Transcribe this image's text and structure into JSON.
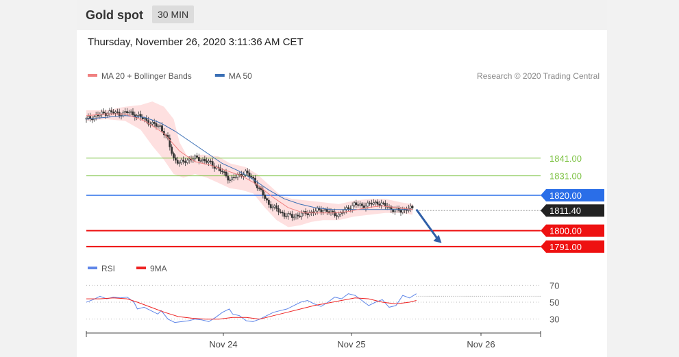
{
  "header": {
    "instrument": "Gold spot",
    "timeframe": "30 MIN"
  },
  "timestamp": "Thursday, November 26, 2020 3:11:36 AM CET",
  "credit": "Research © 2020 Trading Central",
  "colors": {
    "ma20": "#f08080",
    "ma50": "#3a6fb5",
    "bollinger": "#fdd6d6",
    "resistance": "#7cc242",
    "pivot": "#2a6ee8",
    "support": "#ee1111",
    "rsi": "#5f86e8",
    "rsi_ma": "#ee2222",
    "last_price": "#222222"
  },
  "chart_data": [
    {
      "type": "candlestick",
      "title": "",
      "legend": [
        {
          "name": "MA 20 + Bollinger Bands",
          "color": "#f08080"
        },
        {
          "name": "MA 50",
          "color": "#3a6fb5"
        }
      ],
      "legend_position": "top-left",
      "grid": false,
      "ylim": [
        1784,
        1880
      ],
      "x_ticks": [
        "Nov 24",
        "Nov 25",
        "Nov 26"
      ],
      "price_path": [
        [
          0,
          1863
        ],
        [
          3,
          1864
        ],
        [
          8,
          1866
        ],
        [
          12,
          1867
        ],
        [
          18,
          1866
        ],
        [
          22,
          1867
        ],
        [
          26,
          1865
        ],
        [
          30,
          1863
        ],
        [
          34,
          1860
        ],
        [
          38,
          1859
        ],
        [
          42,
          1851
        ],
        [
          45,
          1841
        ],
        [
          48,
          1838
        ],
        [
          52,
          1840
        ],
        [
          56,
          1841
        ],
        [
          60,
          1840
        ],
        [
          64,
          1838
        ],
        [
          68,
          1835
        ],
        [
          72,
          1831
        ],
        [
          74,
          1829
        ],
        [
          78,
          1831
        ],
        [
          82,
          1833
        ],
        [
          86,
          1829
        ],
        [
          90,
          1822
        ],
        [
          94,
          1815
        ],
        [
          98,
          1812
        ],
        [
          102,
          1809
        ],
        [
          106,
          1808
        ],
        [
          110,
          1809
        ],
        [
          114,
          1810
        ],
        [
          118,
          1811
        ],
        [
          122,
          1812
        ],
        [
          126,
          1810
        ],
        [
          130,
          1809
        ],
        [
          134,
          1812
        ],
        [
          138,
          1815
        ],
        [
          142,
          1814
        ],
        [
          146,
          1815
        ],
        [
          150,
          1816
        ],
        [
          154,
          1814
        ],
        [
          158,
          1812
        ],
        [
          162,
          1811
        ],
        [
          166,
          1813
        ],
        [
          168,
          1812
        ]
      ],
      "ma20": [
        [
          0,
          1865
        ],
        [
          10,
          1866
        ],
        [
          20,
          1866
        ],
        [
          30,
          1862
        ],
        [
          40,
          1855
        ],
        [
          48,
          1845
        ],
        [
          56,
          1839
        ],
        [
          64,
          1837
        ],
        [
          72,
          1834
        ],
        [
          80,
          1831
        ],
        [
          88,
          1826
        ],
        [
          96,
          1819
        ],
        [
          104,
          1813
        ],
        [
          112,
          1810
        ],
        [
          120,
          1810
        ],
        [
          128,
          1810
        ],
        [
          136,
          1811
        ],
        [
          144,
          1813
        ],
        [
          152,
          1814
        ],
        [
          160,
          1813
        ],
        [
          168,
          1812
        ]
      ],
      "ma50": [
        [
          0,
          1863
        ],
        [
          10,
          1864
        ],
        [
          20,
          1865
        ],
        [
          30,
          1864
        ],
        [
          38,
          1861
        ],
        [
          46,
          1856
        ],
        [
          54,
          1850
        ],
        [
          62,
          1844
        ],
        [
          70,
          1838
        ],
        [
          78,
          1834
        ],
        [
          86,
          1829
        ],
        [
          94,
          1823
        ],
        [
          102,
          1818
        ],
        [
          110,
          1815
        ],
        [
          118,
          1813
        ],
        [
          126,
          1812
        ],
        [
          134,
          1812
        ],
        [
          142,
          1812
        ],
        [
          150,
          1812
        ],
        [
          158,
          1812
        ],
        [
          168,
          1812
        ]
      ],
      "bb_upper": [
        [
          0,
          1868
        ],
        [
          10,
          1868
        ],
        [
          20,
          1870
        ],
        [
          28,
          1871
        ],
        [
          34,
          1873
        ],
        [
          40,
          1870
        ],
        [
          45,
          1863
        ],
        [
          48,
          1850
        ],
        [
          52,
          1842
        ],
        [
          60,
          1843
        ],
        [
          68,
          1842
        ],
        [
          74,
          1838
        ],
        [
          82,
          1836
        ],
        [
          88,
          1832
        ],
        [
          94,
          1826
        ],
        [
          100,
          1820
        ],
        [
          106,
          1818
        ],
        [
          114,
          1817
        ],
        [
          122,
          1816
        ],
        [
          130,
          1815
        ],
        [
          138,
          1817
        ],
        [
          146,
          1818
        ],
        [
          154,
          1818
        ],
        [
          162,
          1816
        ],
        [
          168,
          1815
        ]
      ],
      "bb_lower": [
        [
          0,
          1862
        ],
        [
          10,
          1863
        ],
        [
          20,
          1862
        ],
        [
          28,
          1857
        ],
        [
          34,
          1848
        ],
        [
          40,
          1840
        ],
        [
          45,
          1832
        ],
        [
          50,
          1830
        ],
        [
          56,
          1832
        ],
        [
          62,
          1830
        ],
        [
          68,
          1827
        ],
        [
          74,
          1824
        ],
        [
          80,
          1823
        ],
        [
          86,
          1821
        ],
        [
          92,
          1813
        ],
        [
          98,
          1806
        ],
        [
          104,
          1802
        ],
        [
          110,
          1803
        ],
        [
          116,
          1805
        ],
        [
          122,
          1806
        ],
        [
          130,
          1806
        ],
        [
          138,
          1808
        ],
        [
          146,
          1809
        ],
        [
          154,
          1810
        ],
        [
          162,
          1810
        ],
        [
          168,
          1809
        ]
      ],
      "levels": [
        {
          "value": 1841.0,
          "label": "1841.00",
          "kind": "resistance"
        },
        {
          "value": 1831.0,
          "label": "1831.00",
          "kind": "resistance"
        },
        {
          "value": 1820.0,
          "label": "1820.00",
          "kind": "pivot"
        },
        {
          "value": 1811.4,
          "label": "1811.40",
          "kind": "last_price"
        },
        {
          "value": 1800.0,
          "label": "1800.00",
          "kind": "support"
        },
        {
          "value": 1791.0,
          "label": "1791.00",
          "kind": "support"
        }
      ],
      "forecast_arrow": {
        "from": [
          170,
          1812
        ],
        "to": [
          183,
          1793
        ]
      }
    },
    {
      "type": "line",
      "title": "",
      "legend": [
        {
          "name": "RSI",
          "color": "#5f86e8"
        },
        {
          "name": "9MA",
          "color": "#ee2222"
        }
      ],
      "legend_position": "top-left",
      "grid": false,
      "ylim": [
        20,
        80
      ],
      "y_ticks": [
        "70",
        "50",
        "30"
      ],
      "reference_levels": [
        70,
        50,
        30
      ],
      "series": [
        {
          "name": "RSI",
          "values": [
            [
              0,
              50
            ],
            [
              4,
              53
            ],
            [
              8,
              57
            ],
            [
              12,
              54
            ],
            [
              16,
              56
            ],
            [
              20,
              55
            ],
            [
              24,
              56
            ],
            [
              28,
              50
            ],
            [
              30,
              42
            ],
            [
              34,
              44
            ],
            [
              38,
              40
            ],
            [
              42,
              36
            ],
            [
              44,
              40
            ],
            [
              48,
              30
            ],
            [
              52,
              26
            ],
            [
              56,
              27
            ],
            [
              60,
              28
            ],
            [
              64,
              30
            ],
            [
              68,
              29
            ],
            [
              72,
              27
            ],
            [
              76,
              32
            ],
            [
              80,
              38
            ],
            [
              84,
              42
            ],
            [
              86,
              36
            ],
            [
              90,
              34
            ],
            [
              94,
              28
            ],
            [
              98,
              27
            ],
            [
              102,
              30
            ],
            [
              106,
              34
            ],
            [
              110,
              38
            ],
            [
              114,
              40
            ],
            [
              118,
              42
            ],
            [
              122,
              46
            ],
            [
              126,
              50
            ],
            [
              130,
              52
            ],
            [
              134,
              48
            ],
            [
              138,
              45
            ],
            [
              142,
              50
            ],
            [
              146,
              56
            ],
            [
              150,
              54
            ],
            [
              154,
              60
            ],
            [
              158,
              58
            ],
            [
              162,
              52
            ],
            [
              166,
              46
            ],
            [
              170,
              50
            ],
            [
              174,
              53
            ],
            [
              178,
              44
            ],
            [
              182,
              46
            ],
            [
              186,
              58
            ],
            [
              190,
              55
            ],
            [
              194,
              60
            ]
          ]
        },
        {
          "name": "9MA",
          "values": [
            [
              0,
              54
            ],
            [
              8,
              54
            ],
            [
              16,
              55
            ],
            [
              24,
              54
            ],
            [
              30,
              50
            ],
            [
              38,
              44
            ],
            [
              46,
              38
            ],
            [
              54,
              33
            ],
            [
              62,
              31
            ],
            [
              70,
              30
            ],
            [
              78,
              30
            ],
            [
              86,
              32
            ],
            [
              94,
              32
            ],
            [
              102,
              30
            ],
            [
              110,
              34
            ],
            [
              118,
              38
            ],
            [
              126,
              42
            ],
            [
              134,
              46
            ],
            [
              142,
              49
            ],
            [
              150,
              52
            ],
            [
              158,
              55
            ],
            [
              166,
              54
            ],
            [
              174,
              50
            ],
            [
              182,
              48
            ],
            [
              190,
              50
            ],
            [
              194,
              52
            ]
          ]
        }
      ],
      "x_ticks": [
        "Nov 24",
        "Nov 25",
        "Nov 26"
      ]
    }
  ]
}
